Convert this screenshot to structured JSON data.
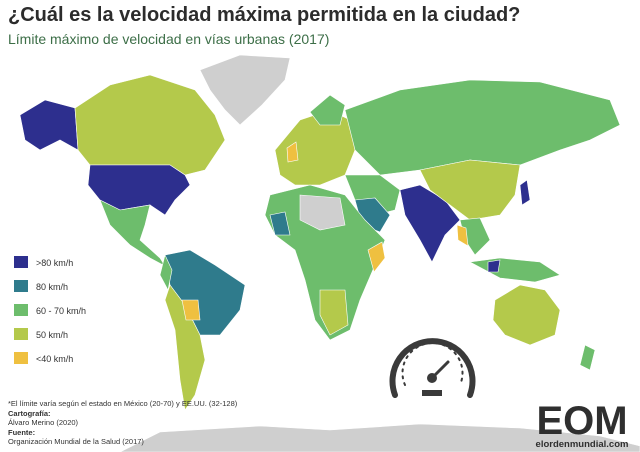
{
  "header": {
    "title": "¿Cuál es la velocidad máxima permitida en la ciudad?",
    "subtitle": "Límite máximo de velocidad en vías urbanas (2017)"
  },
  "legend": [
    {
      "label": ">80 km/h",
      "color": "#2d2f8e"
    },
    {
      "label": "80 km/h",
      "color": "#2f7b8c"
    },
    {
      "label": "60 - 70 km/h",
      "color": "#6dbd6c"
    },
    {
      "label": "50 km/h",
      "color": "#b4c94b"
    },
    {
      "label": "<40 km/h",
      "color": "#efc040"
    }
  ],
  "footer": {
    "note": "*El límite varía según el estado en México (20-70) y EE.UU. (32-128)",
    "credits": [
      {
        "heading": "Cartografía:",
        "text": "Álvaro Merino (2020)"
      },
      {
        "heading": "Fuente:",
        "text": "Organización Mundial de la Salud (2017)"
      }
    ]
  },
  "logo": {
    "mark": "EOM",
    "site": "elordenmundial.com"
  }
}
